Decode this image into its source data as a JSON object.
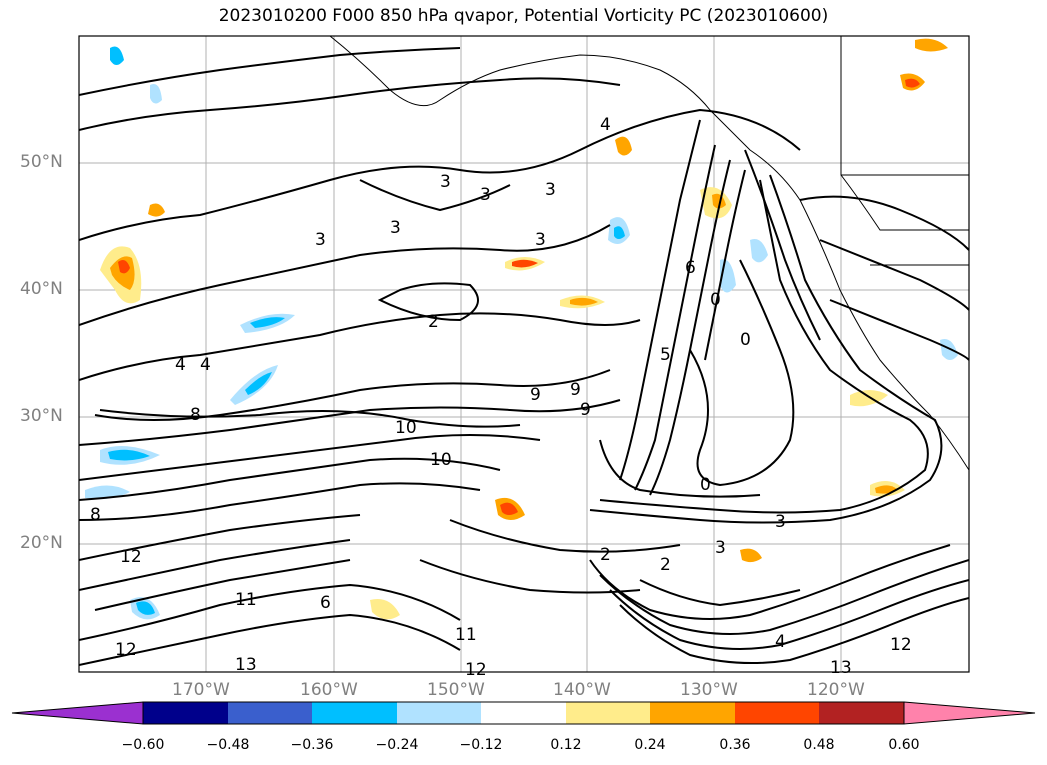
{
  "title": "2023010200 F000 850 hPa qvapor, Potential Vorticity PC (2023010600)",
  "lat_labels": [
    "50°N",
    "40°N",
    "30°N",
    "20°N"
  ],
  "lon_labels": [
    "170°W",
    "160°W",
    "150°W",
    "140°W",
    "130°W",
    "120°W"
  ],
  "colorbar": {
    "colors": [
      "#9b30d0",
      "#00008b",
      "#3a5fcd",
      "#00bfff",
      "#b0e2ff",
      "#ffffff",
      "#ffec8b",
      "#ffa500",
      "#ff4500",
      "#b22222",
      "#ff82ab"
    ],
    "ticks": [
      "−0.60",
      "−0.48",
      "−0.36",
      "−0.24",
      "−0.12",
      "0.12",
      "0.24",
      "0.36",
      "0.48",
      "0.60"
    ]
  },
  "contour_labels": [
    "3",
    "3",
    "3",
    "3",
    "3",
    "3",
    "2",
    "4",
    "4",
    "4",
    "6",
    "5",
    "8",
    "9",
    "9",
    "9",
    "10",
    "10",
    "12",
    "12",
    "13",
    "13",
    "11",
    "0",
    "0",
    "0",
    "2",
    "3",
    "3",
    "4",
    "6",
    "2",
    "8",
    "11",
    "12",
    "12"
  ]
}
